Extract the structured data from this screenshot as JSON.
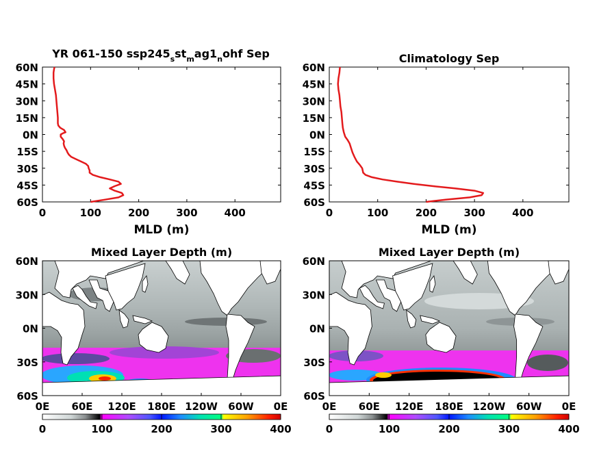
{
  "chart_data": [
    {
      "type": "line",
      "title": "YR 061-150 ssp245_s st_m ag1_n ohf Sep",
      "title_parts": {
        "a": "YR 061-150 ssp245",
        "b": "s",
        "c": "st",
        "d": "m",
        "e": "ag1",
        "f": "n",
        "g": "ohf Sep"
      },
      "xlabel": "MLD (m)",
      "xlim": [
        0,
        495
      ],
      "ylim": [
        -60,
        60
      ],
      "xticks": [
        "0",
        "100",
        "200",
        "300",
        "400"
      ],
      "yticks": [
        "60N",
        "45N",
        "30N",
        "15N",
        "0N",
        "15S",
        "30S",
        "45S",
        "60S"
      ],
      "color": "#e31a1c",
      "series": [
        {
          "points": [
            [
              100,
              -60
            ],
            [
              130,
              -58
            ],
            [
              158,
              -56
            ],
            [
              168,
              -54
            ],
            [
              165,
              -52
            ],
            [
              150,
              -50
            ],
            [
              140,
              -48
            ],
            [
              150,
              -46
            ],
            [
              163,
              -44
            ],
            [
              158,
              -42
            ],
            [
              140,
              -40
            ],
            [
              120,
              -38
            ],
            [
              105,
              -36
            ],
            [
              98,
              -34
            ],
            [
              98,
              -32
            ],
            [
              96,
              -30
            ],
            [
              95,
              -28
            ],
            [
              90,
              -26
            ],
            [
              80,
              -24
            ],
            [
              70,
              -22
            ],
            [
              60,
              -20
            ],
            [
              55,
              -18
            ],
            [
              52,
              -16
            ],
            [
              50,
              -14
            ],
            [
              47,
              -12
            ],
            [
              45,
              -10
            ],
            [
              44,
              -8
            ],
            [
              45,
              -6
            ],
            [
              42,
              -4
            ],
            [
              38,
              -2
            ],
            [
              38,
              0
            ],
            [
              42,
              1
            ],
            [
              48,
              2
            ],
            [
              45,
              4
            ],
            [
              37,
              6
            ],
            [
              33,
              8
            ],
            [
              32,
              10
            ],
            [
              32,
              15
            ],
            [
              31,
              20
            ],
            [
              30,
              25
            ],
            [
              29,
              30
            ],
            [
              28,
              35
            ],
            [
              26,
              40
            ],
            [
              24,
              45
            ],
            [
              23,
              50
            ],
            [
              23,
              55
            ],
            [
              24,
              58
            ],
            [
              25,
              60
            ]
          ]
        }
      ]
    },
    {
      "type": "line",
      "title": "Climatology Sep",
      "xlabel": "MLD (m)",
      "xlim": [
        0,
        495
      ],
      "ylim": [
        -60,
        60
      ],
      "xticks": [
        "0",
        "100",
        "200",
        "300",
        "400"
      ],
      "yticks": [
        "60N",
        "45N",
        "30N",
        "15N",
        "0N",
        "15S",
        "30S",
        "45S",
        "60S"
      ],
      "color": "#e31a1c",
      "series": [
        {
          "points": [
            [
              200,
              -60
            ],
            [
              240,
              -58
            ],
            [
              290,
              -56
            ],
            [
              315,
              -54
            ],
            [
              318,
              -52
            ],
            [
              300,
              -50
            ],
            [
              260,
              -48
            ],
            [
              215,
              -46
            ],
            [
              175,
              -44
            ],
            [
              140,
              -42
            ],
            [
              110,
              -40
            ],
            [
              88,
              -38
            ],
            [
              75,
              -36
            ],
            [
              70,
              -34
            ],
            [
              68,
              -30
            ],
            [
              63,
              -27
            ],
            [
              57,
              -24
            ],
            [
              52,
              -20
            ],
            [
              48,
              -16
            ],
            [
              45,
              -12
            ],
            [
              42,
              -8
            ],
            [
              38,
              -5
            ],
            [
              33,
              -2
            ],
            [
              30,
              2
            ],
            [
              28,
              6
            ],
            [
              27,
              10
            ],
            [
              26,
              15
            ],
            [
              25,
              20
            ],
            [
              23,
              25
            ],
            [
              22,
              30
            ],
            [
              21,
              35
            ],
            [
              19,
              40
            ],
            [
              18,
              45
            ],
            [
              19,
              50
            ],
            [
              21,
              55
            ],
            [
              22,
              60
            ]
          ]
        }
      ]
    },
    {
      "type": "heatmap",
      "title": "Mixed Layer Depth (m)",
      "xticks": [
        "0E",
        "60E",
        "120E",
        "180E",
        "120W",
        "60W",
        "0E"
      ],
      "yticks": [
        "60N",
        "30N",
        "0N",
        "30S",
        "60S"
      ],
      "colorbar": {
        "ticks": [
          "0",
          "100",
          "200",
          "300",
          "400"
        ],
        "range": [
          0,
          400
        ]
      }
    },
    {
      "type": "heatmap",
      "title": "Mixed Layer Depth (m)",
      "xticks": [
        "0E",
        "60E",
        "120E",
        "180E",
        "120W",
        "60W",
        "0E"
      ],
      "yticks": [
        "60N",
        "30N",
        "0N",
        "30S",
        "60S"
      ],
      "colorbar": {
        "ticks": [
          "0",
          "100",
          "200",
          "300",
          "400"
        ],
        "range": [
          0,
          400
        ]
      }
    }
  ]
}
